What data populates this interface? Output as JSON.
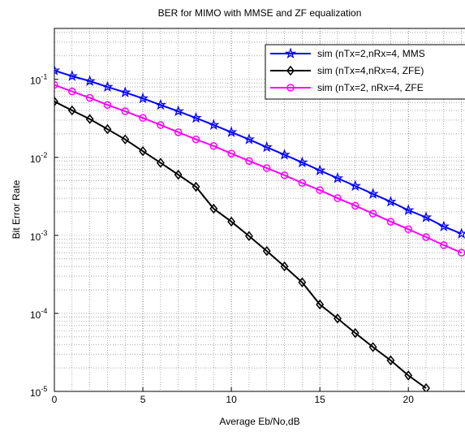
{
  "chart_data": {
    "type": "line",
    "title": "BER for MIMO with MMSE and ZF equalization",
    "xlabel": "Average Eb/No,dB",
    "ylabel": "Bit Error Rate",
    "xlim": [
      0,
      23.2
    ],
    "xticks": [
      0,
      5,
      10,
      15,
      20
    ],
    "ylim": [
      1e-05,
      0.45
    ],
    "yscale": "log",
    "yticks": [
      {
        "value": 0.1,
        "label": "10-1"
      },
      {
        "value": 0.01,
        "label": "10-2"
      },
      {
        "value": 0.001,
        "label": "10-3"
      },
      {
        "value": 0.0001,
        "label": "10-4"
      },
      {
        "value": 1e-05,
        "label": "10-5"
      }
    ],
    "grid": true,
    "legend": "upper right",
    "series": [
      {
        "name": "sim (nTx=2,nRx=4, MMS",
        "color": "#0000ff",
        "marker": "star",
        "x": [
          0,
          1,
          2,
          3,
          4,
          5,
          6,
          7,
          8,
          9,
          10,
          11,
          12,
          13,
          14,
          15,
          16,
          17,
          18,
          19,
          20,
          21,
          22,
          23
        ],
        "values": [
          0.13,
          0.11,
          0.095,
          0.08,
          0.068,
          0.057,
          0.047,
          0.039,
          0.032,
          0.026,
          0.021,
          0.017,
          0.0135,
          0.0108,
          0.0086,
          0.0068,
          0.0054,
          0.0043,
          0.0034,
          0.0027,
          0.0021,
          0.0017,
          0.0013,
          0.00105
        ]
      },
      {
        "name": "sim (nTx=4,nRx=4, ZFE)",
        "color": "#000000",
        "marker": "diamond",
        "x": [
          0,
          1,
          2,
          3,
          4,
          5,
          6,
          7,
          8,
          9,
          10,
          11,
          12,
          13,
          14,
          15,
          16,
          17,
          18,
          19,
          20,
          21
        ],
        "values": [
          0.052,
          0.04,
          0.031,
          0.023,
          0.017,
          0.012,
          0.0085,
          0.006,
          0.0042,
          0.0022,
          0.0015,
          0.00098,
          0.00063,
          0.0004,
          0.00025,
          0.00013,
          8.6e-05,
          5.6e-05,
          3.7e-05,
          2.5e-05,
          1.6e-05,
          1.1e-05
        ]
      },
      {
        "name": "sim (nTx=2, nRx=4, ZFE",
        "color": "#ff00ff",
        "marker": "circle",
        "x": [
          0,
          1,
          2,
          3,
          4,
          5,
          6,
          7,
          8,
          9,
          10,
          11,
          12,
          13,
          14,
          15,
          16,
          17,
          18,
          19,
          20,
          21,
          22,
          23
        ],
        "values": [
          0.085,
          0.07,
          0.058,
          0.047,
          0.039,
          0.032,
          0.026,
          0.021,
          0.017,
          0.014,
          0.0112,
          0.009,
          0.0073,
          0.0059,
          0.0047,
          0.0038,
          0.003,
          0.0024,
          0.0019,
          0.0015,
          0.0012,
          0.00095,
          0.00075,
          0.0006
        ]
      }
    ]
  }
}
